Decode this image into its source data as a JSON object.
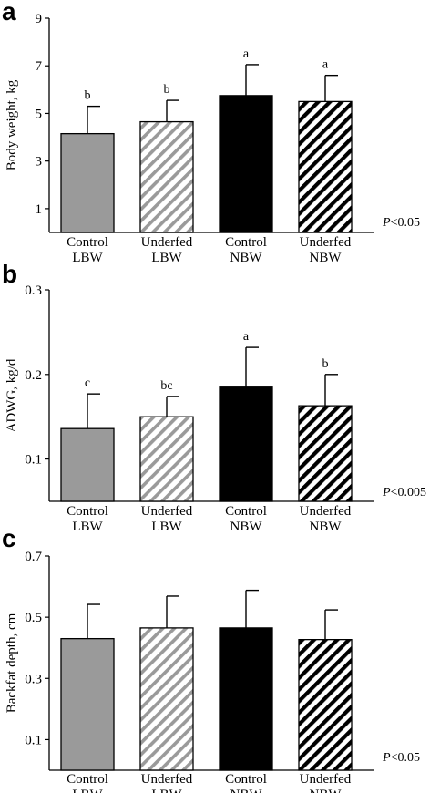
{
  "pattern_colors": {
    "control_lbw": "#9a9a9a",
    "underfed_lbw": "#9a9a9a",
    "control_nbw": "#000000",
    "underfed_nbw": "#000000",
    "outline": "#000000"
  },
  "chart_data": [
    {
      "type": "bar",
      "panel": "a",
      "categories": [
        [
          "Control",
          "LBW"
        ],
        [
          "Underfed",
          "LBW"
        ],
        [
          "Control",
          "NBW"
        ],
        [
          "Underfed",
          "NBW"
        ]
      ],
      "values": [
        4.15,
        4.65,
        5.75,
        5.5
      ],
      "errors": [
        1.15,
        0.9,
        1.3,
        1.1
      ],
      "significance": [
        "b",
        "b",
        "a",
        "a"
      ],
      "ylabel": "Body  weight, kg",
      "ylim": [
        0,
        9
      ],
      "yticks": [
        1,
        3,
        5,
        7,
        9
      ],
      "p_value": "<0.05"
    },
    {
      "type": "bar",
      "panel": "b",
      "categories": [
        [
          "Control",
          "LBW"
        ],
        [
          "Underfed",
          "LBW"
        ],
        [
          "Control",
          "NBW"
        ],
        [
          "Underfed",
          "NBW"
        ]
      ],
      "values": [
        0.136,
        0.15,
        0.185,
        0.163
      ],
      "errors": [
        0.041,
        0.024,
        0.047,
        0.037
      ],
      "significance": [
        "c",
        "bc",
        "a",
        "b"
      ],
      "ylabel": "ADWG, kg/d",
      "ylim": [
        0.05,
        0.3
      ],
      "yticks": [
        0.1,
        0.2,
        0.3
      ],
      "p_value": "<0.005"
    },
    {
      "type": "bar",
      "panel": "c",
      "categories": [
        [
          "Control",
          "LBW"
        ],
        [
          "Underfed",
          "LBW"
        ],
        [
          "Control",
          "NBW"
        ],
        [
          "Underfed",
          "NBW"
        ]
      ],
      "values": [
        0.43,
        0.465,
        0.465,
        0.427
      ],
      "errors": [
        0.112,
        0.104,
        0.123,
        0.097
      ],
      "significance": [
        "",
        "",
        "",
        ""
      ],
      "ylabel": "Backfat depth, cm",
      "ylim": [
        0,
        0.7
      ],
      "yticks": [
        0.1,
        0.3,
        0.5,
        0.7
      ],
      "p_value": "<0.05"
    }
  ]
}
